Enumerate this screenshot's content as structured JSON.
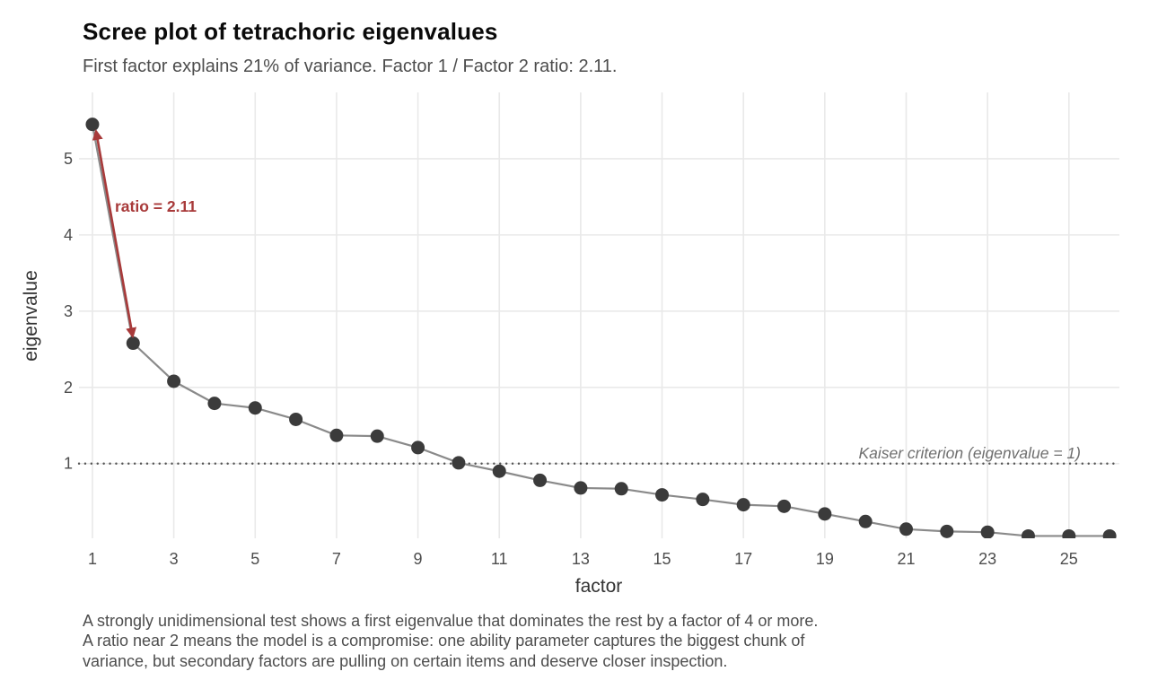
{
  "header": {
    "title": "Scree plot of tetrachoric eigenvalues",
    "subtitle": "First factor explains 21% of variance. Factor 1 / Factor 2 ratio: 2.11."
  },
  "caption": {
    "lines": [
      "A strongly unidimensional test shows a first eigenvalue that dominates the rest by a factor of 4 or more.",
      "A ratio near 2 means the model is a compromise: one ability parameter captures the biggest chunk of",
      "variance, but secondary factors are pulling on certain items and deserve closer inspection."
    ]
  },
  "chart_data": {
    "type": "line",
    "title": "Scree plot of tetrachoric eigenvalues",
    "subtitle": "First factor explains 21% of variance. Factor 1 / Factor 2 ratio: 2.11.",
    "xlabel": "factor",
    "ylabel": "eigenvalue",
    "x": [
      1,
      2,
      3,
      4,
      5,
      6,
      7,
      8,
      9,
      10,
      11,
      12,
      13,
      14,
      15,
      16,
      17,
      18,
      19,
      20,
      21,
      22,
      23,
      24,
      25,
      26
    ],
    "values": [
      5.45,
      2.58,
      2.08,
      1.79,
      1.73,
      1.58,
      1.37,
      1.36,
      1.21,
      1.01,
      0.9,
      0.78,
      0.68,
      0.67,
      0.59,
      0.53,
      0.46,
      0.44,
      0.34,
      0.24,
      0.14,
      0.11,
      0.1,
      0.05,
      0.05,
      0.05
    ],
    "x_ticks": [
      1,
      3,
      5,
      7,
      9,
      11,
      13,
      15,
      17,
      19,
      21,
      23,
      25
    ],
    "y_ticks": [
      1,
      2,
      3,
      4,
      5
    ],
    "xlim": [
      0.67,
      26.24
    ],
    "ylim": [
      0.02,
      5.87
    ],
    "grid": "major",
    "legend": "none",
    "reference_line": {
      "y": 1,
      "label": "Kaiser criterion (eigenvalue = 1)",
      "style": "dotted"
    },
    "annotation": {
      "label": "ratio = 2.11",
      "x1": 1.09,
      "y1": 5.36,
      "x2": 1.99,
      "y2": 2.67
    },
    "colors": {
      "point": "#3b3b3b",
      "line": "#8a8a8a",
      "grid": "#e9e9e9",
      "refline": "#555555",
      "annotation": "#a83a3a"
    }
  }
}
